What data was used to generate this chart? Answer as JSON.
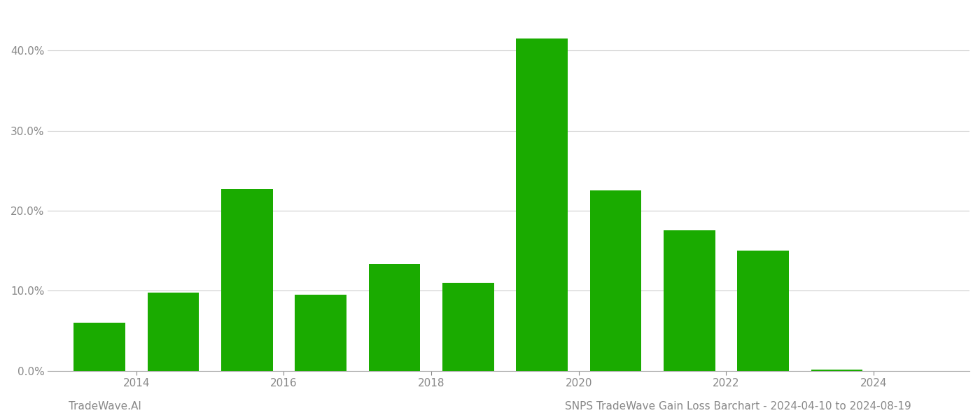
{
  "years": [
    2013,
    2014,
    2015,
    2016,
    2017,
    2018,
    2019,
    2020,
    2021,
    2022,
    2023
  ],
  "values": [
    0.06,
    0.098,
    0.227,
    0.095,
    0.133,
    0.11,
    0.415,
    0.225,
    0.175,
    0.15,
    0.001
  ],
  "bar_color": "#1aab00",
  "background_color": "#ffffff",
  "ylim": [
    0,
    0.45
  ],
  "yticks": [
    0.0,
    0.1,
    0.2,
    0.3,
    0.4
  ],
  "xtick_labels": [
    "2014",
    "2016",
    "2018",
    "2020",
    "2022",
    "2024"
  ],
  "xtick_positions": [
    2013.5,
    2015.5,
    2017.5,
    2019.5,
    2021.5,
    2023.5
  ],
  "xlim": [
    2012.3,
    2024.8
  ],
  "grid_color": "#cccccc",
  "footer_left": "TradeWave.AI",
  "footer_right": "SNPS TradeWave Gain Loss Barchart - 2024-04-10 to 2024-08-19",
  "footer_color": "#888888",
  "footer_fontsize": 11,
  "bar_width": 0.7
}
